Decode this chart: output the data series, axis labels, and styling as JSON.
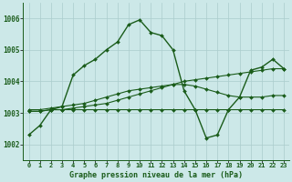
{
  "title": "Graphe pression niveau de la mer (hPa)",
  "background_color": "#cce8e8",
  "grid_color": "#aacccc",
  "line_color": "#1a5c1a",
  "x_labels": [
    "0",
    "1",
    "2",
    "3",
    "4",
    "5",
    "6",
    "7",
    "8",
    "9",
    "10",
    "11",
    "12",
    "13",
    "14",
    "15",
    "16",
    "17",
    "18",
    "19",
    "20",
    "21",
    "22",
    "23"
  ],
  "ylim": [
    1001.5,
    1006.5
  ],
  "yticks": [
    1002,
    1003,
    1004,
    1005,
    1006
  ],
  "series": [
    [
      1002.3,
      1002.6,
      1003.1,
      1003.2,
      1004.2,
      1004.5,
      1004.7,
      1005.0,
      1005.25,
      1005.8,
      1005.95,
      1005.55,
      1005.45,
      1005.0,
      1003.7,
      1003.1,
      1002.2,
      1002.3,
      1003.1,
      1003.5,
      1004.35,
      1004.45,
      1004.7,
      1004.4
    ],
    [
      1003.1,
      1003.1,
      1003.15,
      1003.2,
      1003.25,
      1003.3,
      1003.4,
      1003.5,
      1003.6,
      1003.7,
      1003.75,
      1003.8,
      1003.85,
      1003.9,
      1003.9,
      1003.85,
      1003.75,
      1003.65,
      1003.55,
      1003.5,
      1003.5,
      1003.5,
      1003.55,
      1003.55
    ],
    [
      1003.05,
      1003.05,
      1003.1,
      1003.1,
      1003.15,
      1003.2,
      1003.25,
      1003.3,
      1003.4,
      1003.5,
      1003.6,
      1003.7,
      1003.8,
      1003.9,
      1004.0,
      1004.05,
      1004.1,
      1004.15,
      1004.2,
      1004.25,
      1004.3,
      1004.35,
      1004.4,
      1004.4
    ],
    [
      1003.05,
      1003.05,
      1003.1,
      1003.1,
      1003.1,
      1003.1,
      1003.1,
      1003.1,
      1003.1,
      1003.1,
      1003.1,
      1003.1,
      1003.1,
      1003.1,
      1003.1,
      1003.1,
      1003.1,
      1003.1,
      1003.1,
      1003.1,
      1003.1,
      1003.1,
      1003.1,
      1003.1
    ]
  ]
}
